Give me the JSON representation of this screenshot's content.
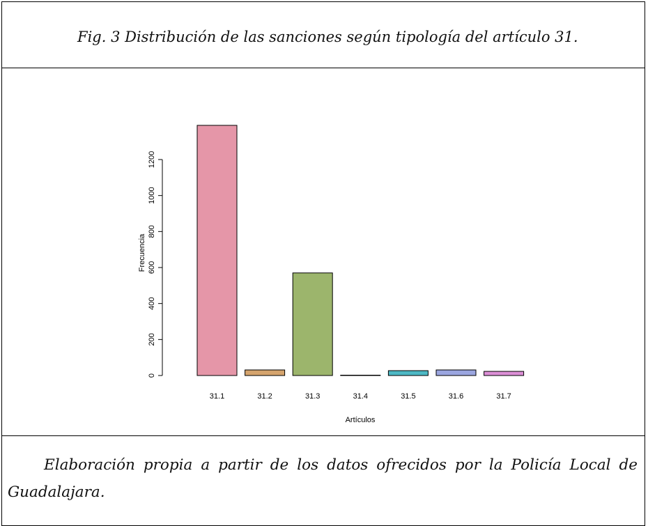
{
  "chart_data": {
    "type": "bar",
    "title": "Fig. 3 Distribución de las sanciones según tipología del artículo 31.",
    "caption": "Elaboración propia a partir de los datos ofrecidos por la Policía Local de Guadalajara.",
    "xlabel": "Artículos",
    "ylabel": "Frecuencia",
    "categories": [
      "31.1",
      "31.2",
      "31.3",
      "31.4",
      "31.5",
      "31.6",
      "31.7"
    ],
    "values": [
      1390,
      31,
      570,
      2,
      27,
      31,
      23
    ],
    "colors": [
      "#e596a8",
      "#d5a46e",
      "#9cb56c",
      "#5fbf97",
      "#4db8c4",
      "#9ba6e0",
      "#dc8fd6"
    ],
    "ylim": [
      0,
      1400
    ],
    "yticks": [
      0,
      200,
      400,
      600,
      800,
      1000,
      1200
    ]
  }
}
